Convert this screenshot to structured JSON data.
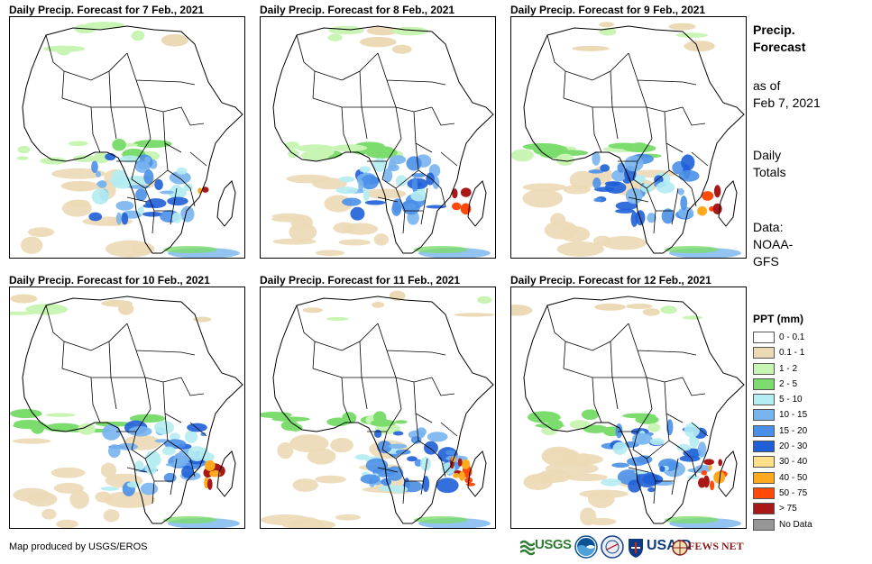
{
  "panels": [
    {
      "title": "Daily Precip. Forecast for 7 Feb., 2021"
    },
    {
      "title": "Daily Precip. Forecast for 8 Feb., 2021"
    },
    {
      "title": "Daily Precip. Forecast for 9 Feb., 2021"
    },
    {
      "title": "Daily Precip. Forecast for 10 Feb., 2021"
    },
    {
      "title": "Daily Precip. Forecast for 11 Feb., 2021"
    },
    {
      "title": "Daily Precip. Forecast for 12 Feb., 2021"
    }
  ],
  "side": {
    "title_line1": "Precip.",
    "title_line2": "Forecast",
    "asof_line1": "as of",
    "asof_line2": "Feb 7, 2021",
    "daily_line1": "Daily",
    "daily_line2": "Totals",
    "data_line1": "Data:",
    "data_line2": "NOAA-",
    "data_line3": "GFS"
  },
  "legend": {
    "title": "PPT (mm)",
    "items": [
      {
        "label": "0 - 0.1",
        "color": "#ffffff"
      },
      {
        "label": "0.1 - 1",
        "color": "#ecd9b5"
      },
      {
        "label": "1 - 2",
        "color": "#c8f5b4"
      },
      {
        "label": "2 - 5",
        "color": "#7ddc6e"
      },
      {
        "label": "5 - 10",
        "color": "#b4ecf2"
      },
      {
        "label": "10 - 15",
        "color": "#78b4ee"
      },
      {
        "label": "15 - 20",
        "color": "#4a8fe8"
      },
      {
        "label": "20 - 30",
        "color": "#1e5fd8"
      },
      {
        "label": "30 - 40",
        "color": "#ffe08a"
      },
      {
        "label": "40 - 50",
        "color": "#ffaa1e"
      },
      {
        "label": "50 - 75",
        "color": "#ff4a0a"
      },
      {
        "label": "> 75",
        "color": "#a81818"
      },
      {
        "label": "No Data",
        "color": "#969696"
      }
    ]
  },
  "footer": {
    "credit": "Map produced by USGS/EROS",
    "logo_usgs": "USGS",
    "logo_usaid": "USAID",
    "logo_fews": "FEWS NET"
  },
  "colors": {
    "water": "#ffffff",
    "border": "#000000",
    "dry": "#ecd9b5",
    "light_green": "#c8f5b4",
    "green": "#7ddc6e",
    "cyan": "#b4ecf2",
    "light_blue": "#78b4ee",
    "blue": "#4a8fe8",
    "dark_blue": "#1e5fd8",
    "orange": "#ffaa1e",
    "red": "#ff4a0a",
    "dark_red": "#a81818"
  }
}
